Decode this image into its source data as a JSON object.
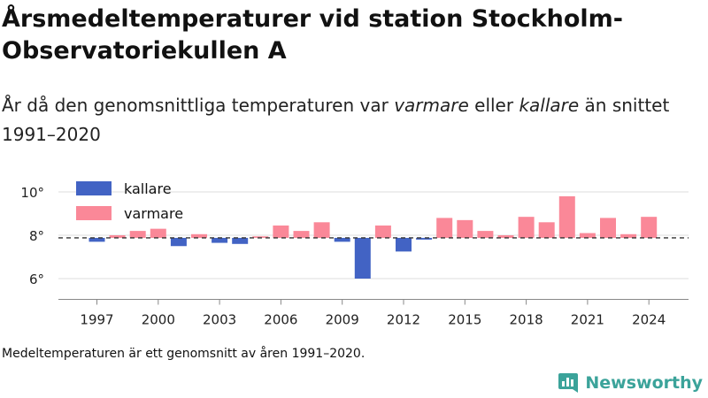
{
  "header": {
    "title": "Årsmedeltemperaturer vid station Stockholm-Observatoriekullen A",
    "subtitle_before": "År då den genomsnittliga temperaturen var ",
    "subtitle_em1": "varmare",
    "subtitle_mid": " eller ",
    "subtitle_em2": "kallare",
    "subtitle_after": " än snittet 1991–2020"
  },
  "chart_data": {
    "type": "bar",
    "baseline": 7.88,
    "baseline_style": "dashed",
    "categories": [
      1997,
      1998,
      1999,
      2000,
      2001,
      2002,
      2003,
      2004,
      2005,
      2006,
      2007,
      2008,
      2009,
      2010,
      2011,
      2012,
      2013,
      2014,
      2015,
      2016,
      2017,
      2018,
      2019,
      2020,
      2021,
      2022,
      2023,
      2024
    ],
    "values": [
      7.7,
      8.0,
      8.2,
      8.3,
      7.5,
      8.05,
      7.65,
      7.6,
      7.95,
      8.45,
      8.2,
      8.6,
      7.7,
      6.0,
      8.45,
      7.25,
      7.8,
      8.8,
      8.7,
      8.2,
      8.0,
      8.85,
      8.6,
      9.8,
      8.1,
      8.8,
      8.05,
      8.85
    ],
    "legend": [
      {
        "name": "kallare",
        "color": "#4263c4"
      },
      {
        "name": "varmare",
        "color": "#fa8898"
      }
    ],
    "legend_position": "top-left",
    "x_ticks": [
      "1997",
      "2000",
      "2003",
      "2006",
      "2009",
      "2012",
      "2015",
      "2018",
      "2021",
      "2024"
    ],
    "y_ticks": [
      "6°",
      "8°",
      "10°"
    ],
    "ylim": [
      5,
      10.5
    ],
    "grid": "horizontal"
  },
  "footer": {
    "note": "Medeltemperaturen är ett genomsnitt av åren 1991–2020.",
    "brand": "Newsworthy",
    "brand_icon": "bar-chart-logo-icon",
    "brand_color": "#3ba39a"
  }
}
